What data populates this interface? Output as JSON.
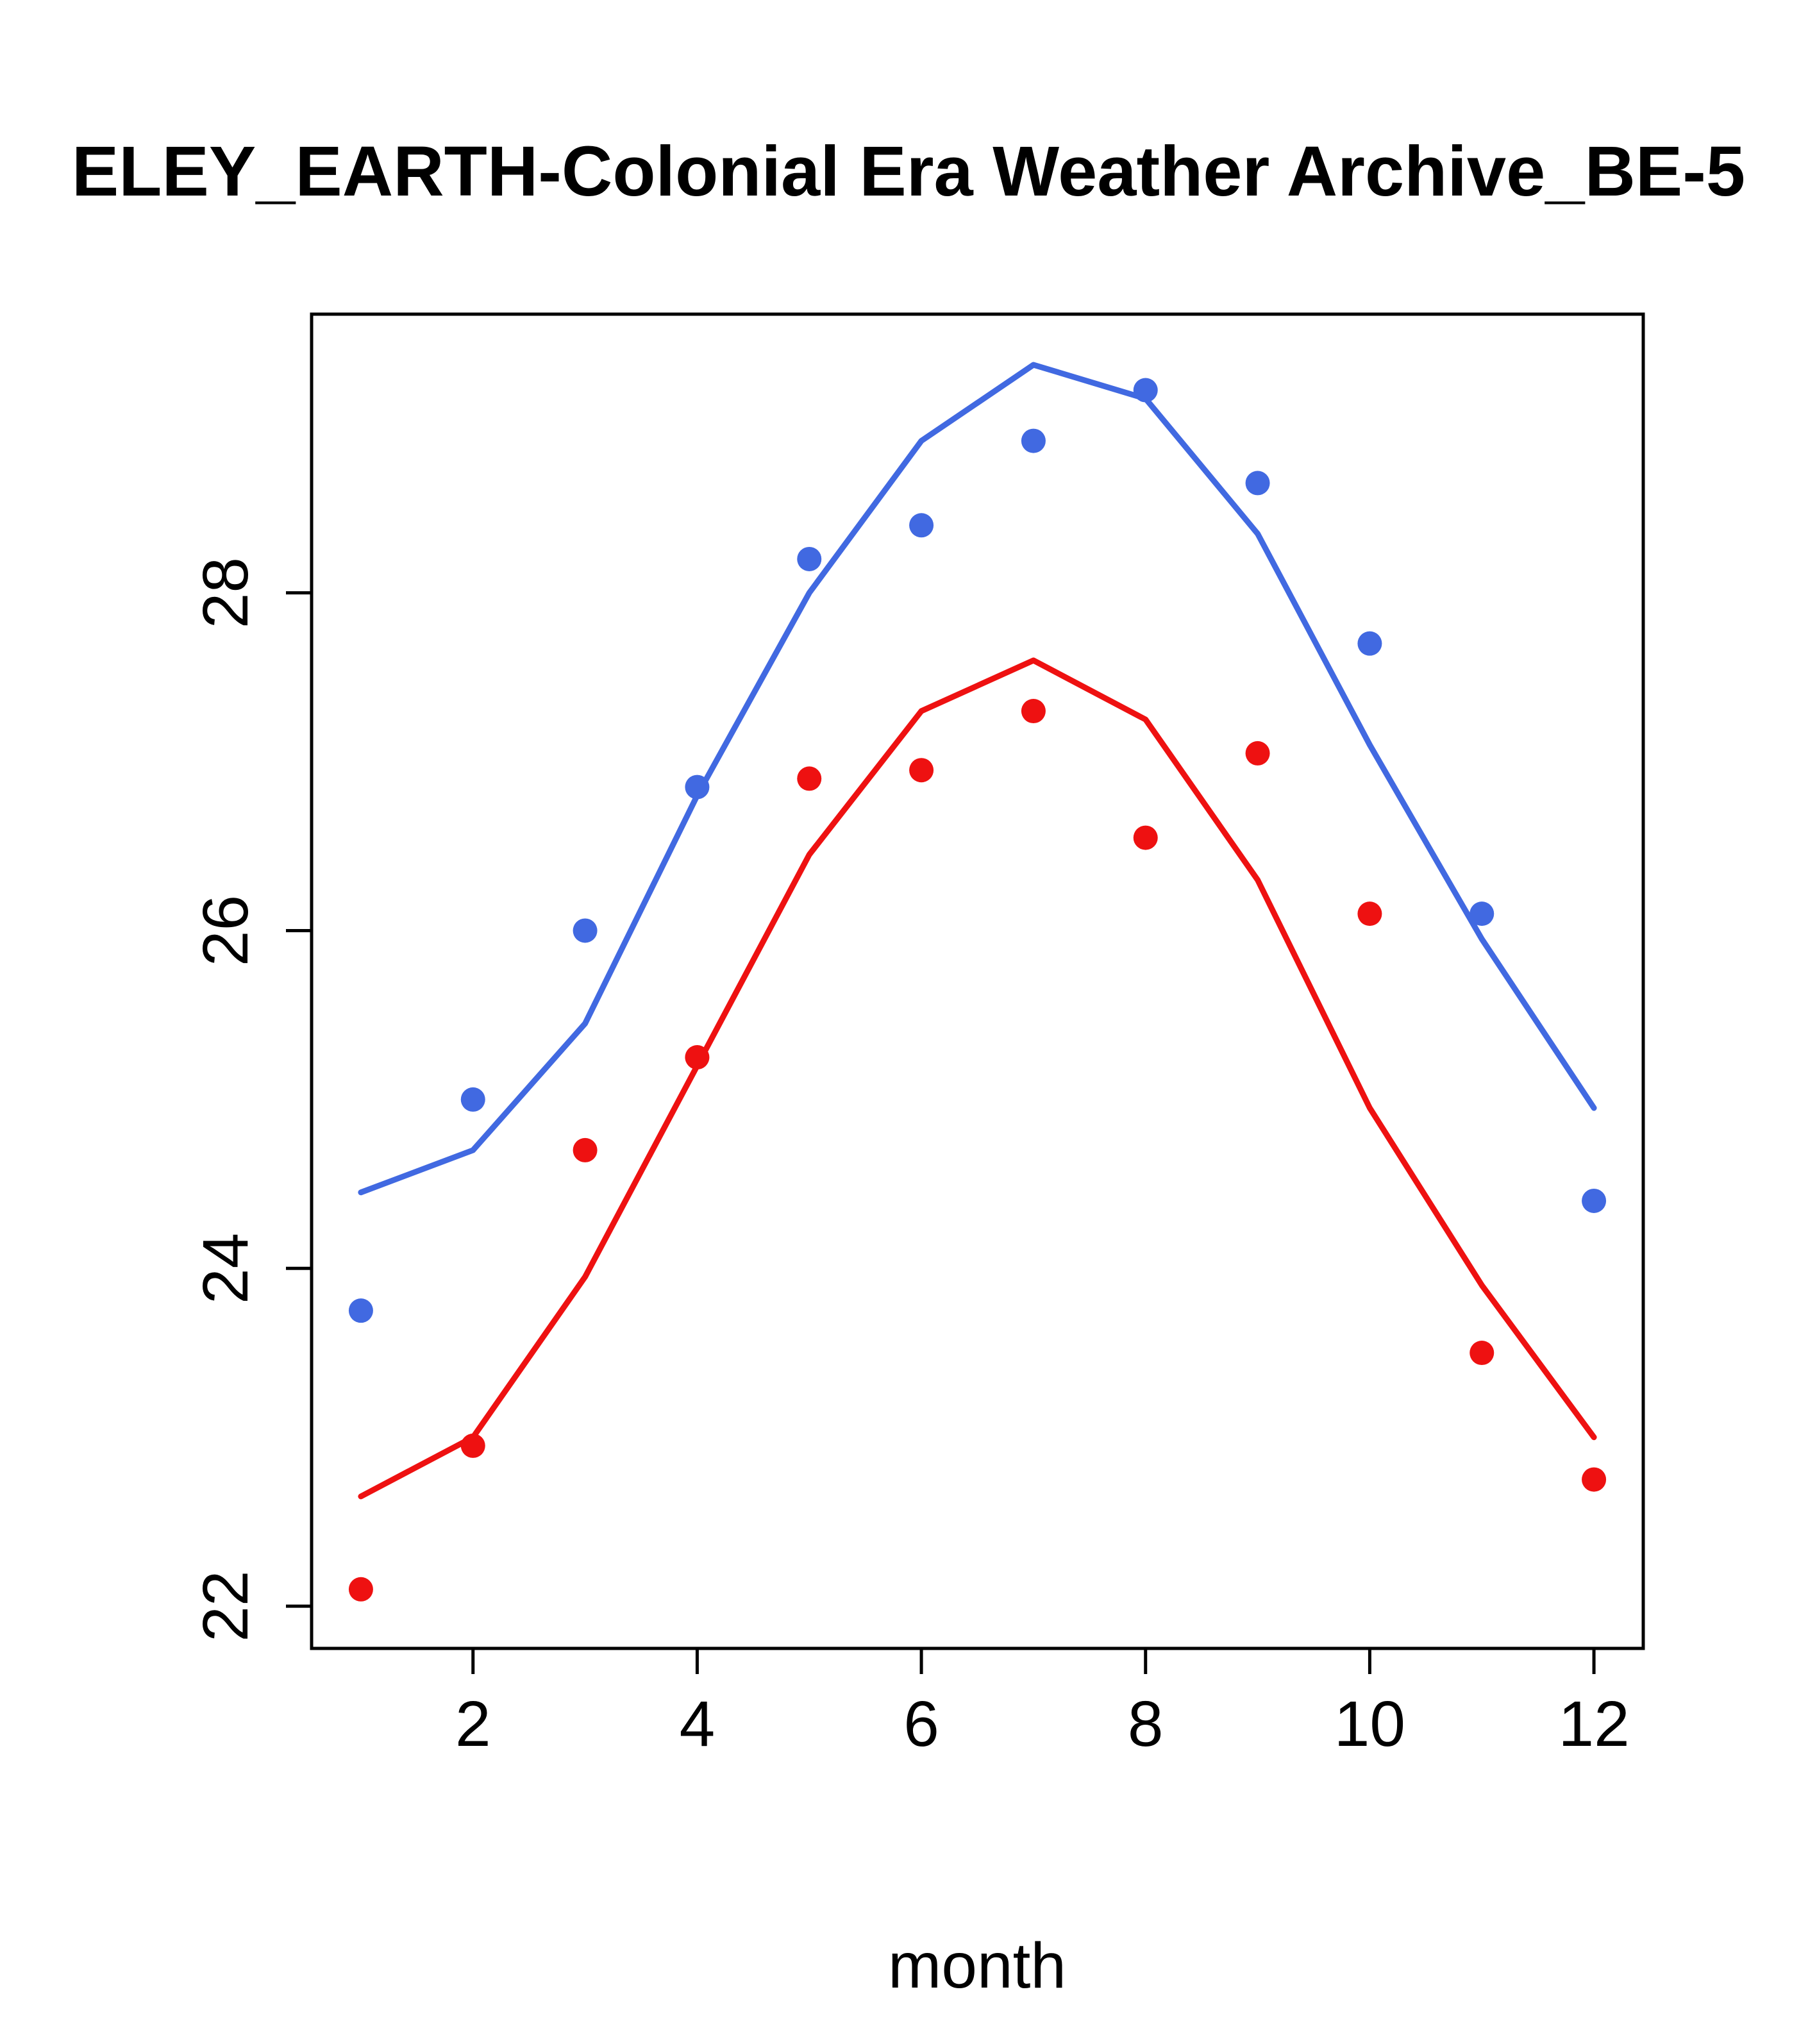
{
  "chart_data": {
    "type": "line",
    "title": "ELEY_EARTH-Colonial Era Weather Archive_BE-5",
    "xlabel": "month",
    "ylabel": "",
    "x": [
      1,
      2,
      3,
      4,
      5,
      6,
      7,
      8,
      9,
      10,
      11,
      12
    ],
    "x_ticks": [
      2,
      4,
      6,
      8,
      10,
      12
    ],
    "y_ticks": [
      22,
      24,
      26,
      28
    ],
    "xlim": [
      0.56,
      12.44
    ],
    "ylim": [
      21.75,
      29.65
    ],
    "grid": false,
    "legend_position": "none",
    "colors": {
      "blue_series": "#4169e1",
      "red_series": "#ee1111"
    },
    "series": [
      {
        "name": "blue-line",
        "type": "line",
        "color": "#4169e1",
        "values": [
          24.45,
          24.7,
          25.45,
          26.8,
          28.0,
          28.9,
          29.35,
          29.15,
          28.35,
          27.1,
          25.95,
          24.95
        ]
      },
      {
        "name": "red-line",
        "type": "line",
        "color": "#ee1111",
        "values": [
          22.65,
          23.0,
          23.95,
          25.2,
          26.45,
          27.3,
          27.6,
          27.25,
          26.3,
          24.95,
          23.9,
          23.0
        ]
      },
      {
        "name": "blue-points",
        "type": "scatter",
        "color": "#4169e1",
        "values": [
          23.75,
          25.0,
          26.0,
          26.85,
          28.2,
          28.4,
          28.9,
          29.2,
          28.65,
          27.7,
          26.1,
          24.4
        ]
      },
      {
        "name": "red-points",
        "type": "scatter",
        "color": "#ee1111",
        "values": [
          22.1,
          22.95,
          24.7,
          25.25,
          26.9,
          26.95,
          27.3,
          26.55,
          27.05,
          26.1,
          23.5,
          22.75
        ]
      }
    ]
  }
}
